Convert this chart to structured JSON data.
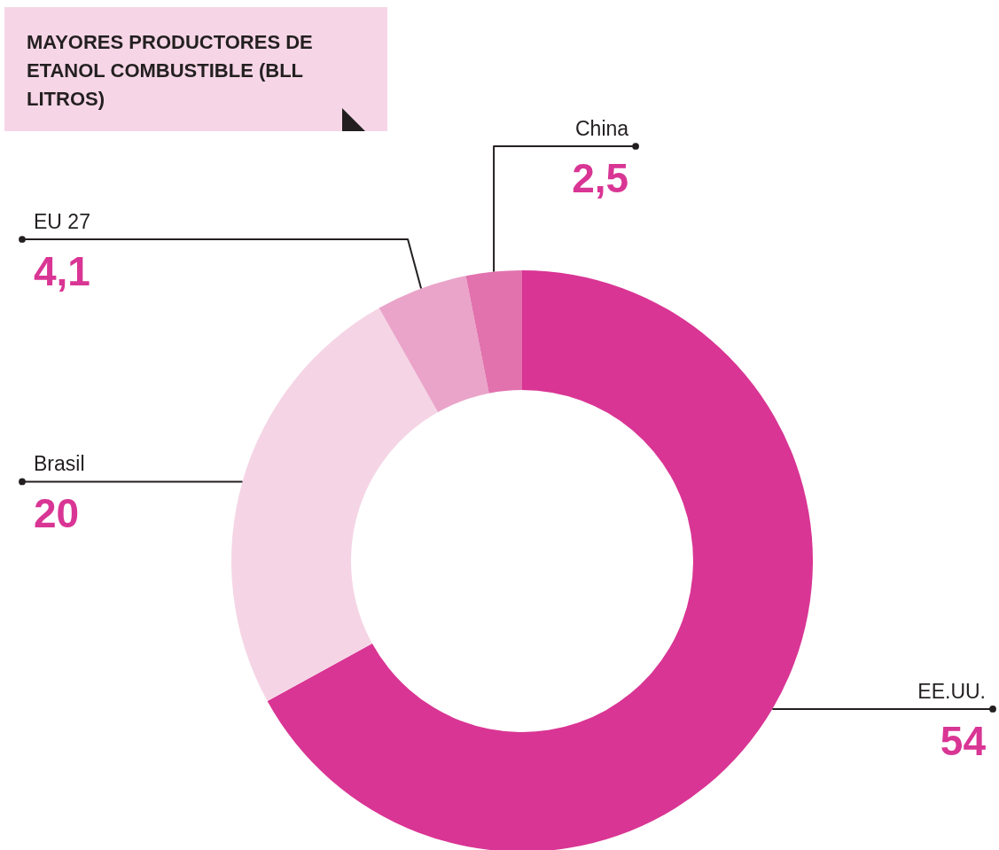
{
  "chart_data": {
    "type": "donut",
    "title": "MAYORES PRODUCTORES DE ETANOL COMBUSTIBLE (BLL LITROS)",
    "categories": [
      "EE.UU.",
      "Brasil",
      "EU 27",
      "China"
    ],
    "values": [
      54,
      20,
      4.1,
      2.5
    ],
    "colors": [
      "#d93594",
      "#f5d5e5",
      "#eaa4c9",
      "#e272ae"
    ],
    "value_labels": [
      "54",
      "20",
      "4,1",
      "2,5"
    ]
  }
}
